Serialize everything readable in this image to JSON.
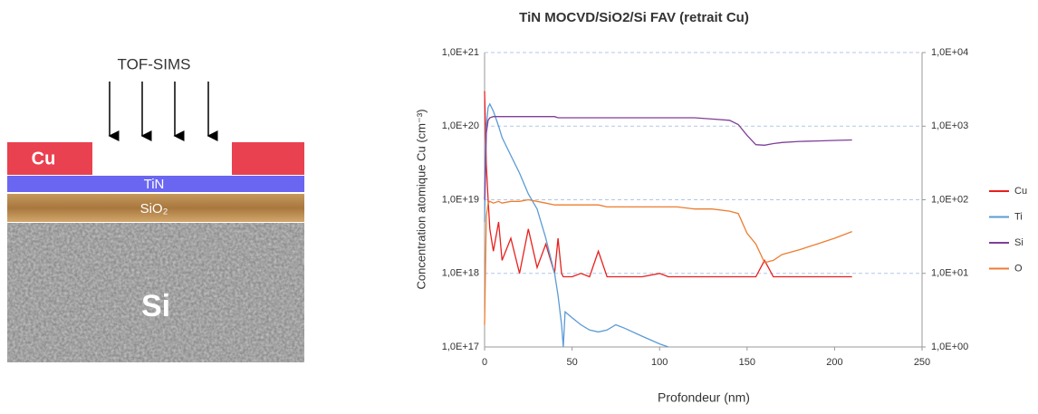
{
  "diagram": {
    "beam_label": "TOF-SIMS",
    "layers": {
      "cu": "Cu",
      "tin": "TiN",
      "sio2": "SiO₂",
      "si": "Si"
    }
  },
  "chart_data": {
    "type": "line",
    "title": "TiN MOCVD/SiO2/Si FAV (retrait Cu)",
    "x_label": "Profondeur (nm)",
    "y_label": "Concentration atomique Cu (cm⁻³)",
    "log_scale": true,
    "grid": true,
    "legend": "right",
    "xlim": [
      0,
      250
    ],
    "xticks": [
      0,
      50,
      100,
      150,
      200,
      250
    ],
    "ylim": [
      1e+17,
      1e+21
    ],
    "yticks": [
      {
        "value": 1e+17,
        "label": "1,0E+17"
      },
      {
        "value": 1e+18,
        "label": "1,0E+18"
      },
      {
        "value": 1e+19,
        "label": "1,0E+19"
      },
      {
        "value": 1e+20,
        "label": "1,0E+20"
      },
      {
        "value": 1e+21,
        "label": "1,0E+21"
      }
    ],
    "y2lim": [
      1,
      10000
    ],
    "y2ticks": [
      {
        "value": 1,
        "label": "1,0E+00"
      },
      {
        "value": 10,
        "label": "1,0E+01"
      },
      {
        "value": 100,
        "label": "1,0E+02"
      },
      {
        "value": 1000,
        "label": "1,0E+03"
      },
      {
        "value": 10000,
        "label": "1,0E+04"
      }
    ],
    "x": [
      0,
      1,
      2,
      3,
      5,
      8,
      10,
      15,
      20,
      25,
      30,
      35,
      40,
      42,
      44,
      45,
      46,
      50,
      55,
      60,
      65,
      70,
      75,
      80,
      90,
      100,
      105,
      110,
      120,
      130,
      140,
      145,
      150,
      155,
      160,
      165,
      170,
      180,
      190,
      200,
      210
    ],
    "series": [
      {
        "name": "Cu",
        "color": "#e8201e",
        "values": [
          3e+20,
          3e+19,
          1e+19,
          4e+18,
          2e+18,
          5e+18,
          1.5e+18,
          3e+18,
          1e+18,
          4e+18,
          1.2e+18,
          2.5e+18,
          1e+18,
          3e+18,
          1e+18,
          9e+17,
          9e+17,
          9e+17,
          1e+18,
          9e+17,
          2e+18,
          9e+17,
          9e+17,
          9e+17,
          9e+17,
          1e+18,
          9e+17,
          9e+17,
          9e+17,
          9e+17,
          9e+17,
          9e+17,
          9e+17,
          9e+17,
          1.5e+18,
          9e+17,
          9e+17,
          9e+17,
          9e+17,
          9e+17,
          9e+17
        ]
      },
      {
        "name": "Ti",
        "color": "#5b9bd5",
        "axis": "y2",
        "values": [
          50,
          1000,
          1800,
          2000,
          1600,
          1000,
          700,
          400,
          230,
          120,
          75,
          30,
          10,
          5,
          2,
          1,
          3,
          2.5,
          2,
          1.7,
          1.6,
          1.7,
          2,
          1.8,
          1.4,
          1.1,
          1,
          null,
          null,
          null,
          null,
          null,
          null,
          null,
          null,
          null,
          null,
          null,
          null,
          null,
          null
        ]
      },
      {
        "name": "Si",
        "color": "#7f3f98",
        "axis": "y2",
        "values": [
          100,
          800,
          1200,
          1300,
          1350,
          1350,
          1350,
          1350,
          1350,
          1350,
          1350,
          1350,
          1350,
          1300,
          1300,
          1300,
          1300,
          1300,
          1300,
          1300,
          1300,
          1300,
          1300,
          1300,
          1300,
          1300,
          1300,
          1300,
          1300,
          1250,
          1200,
          1050,
          750,
          560,
          550,
          580,
          600,
          620,
          630,
          640,
          650
        ]
      },
      {
        "name": "O",
        "color": "#ed7d31",
        "axis": "y2",
        "values": [
          2,
          60,
          90,
          95,
          90,
          95,
          90,
          95,
          95,
          100,
          95,
          90,
          85,
          85,
          85,
          85,
          85,
          85,
          85,
          85,
          85,
          80,
          80,
          80,
          80,
          80,
          80,
          80,
          75,
          75,
          70,
          65,
          35,
          25,
          14,
          15,
          18,
          21,
          25,
          30,
          37
        ]
      }
    ]
  }
}
